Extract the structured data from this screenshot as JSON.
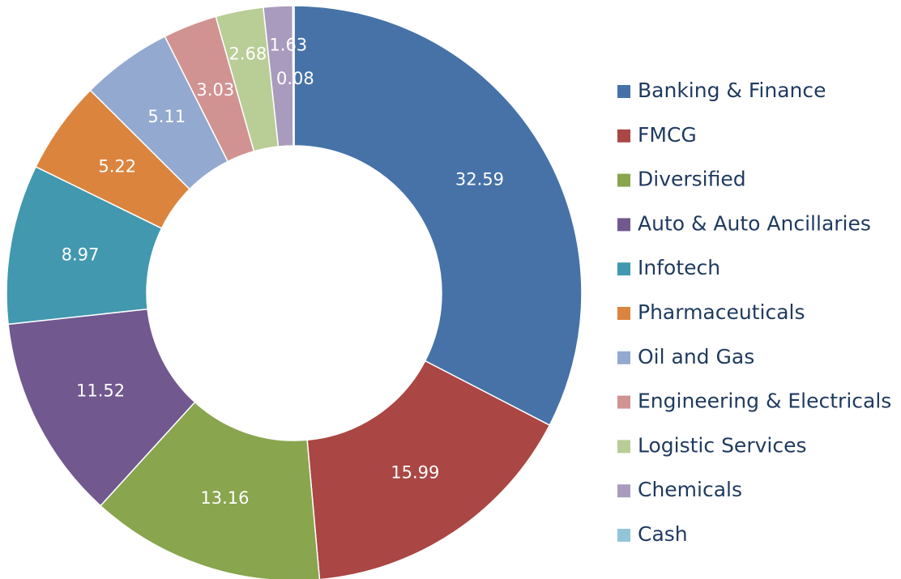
{
  "chart_data": {
    "type": "donut",
    "categories": [
      "Banking & Finance",
      "FMCG",
      "Diversified",
      "Auto & Auto Ancillaries",
      "Infotech",
      "Pharmaceuticals",
      "Oil and Gas",
      "Engineering & Electricals",
      "Logistic Services",
      "Chemicals",
      "Cash"
    ],
    "values": [
      32.59,
      15.99,
      13.16,
      11.52,
      8.97,
      5.22,
      5.11,
      3.03,
      2.68,
      1.63,
      0.08
    ],
    "colors": [
      "#4672a8",
      "#aa4643",
      "#89a54e",
      "#71588f",
      "#4198af",
      "#db843d",
      "#93a9cf",
      "#d19392",
      "#b9cd96",
      "#a99bbd",
      "#92c5d8"
    ],
    "legend": "right"
  }
}
